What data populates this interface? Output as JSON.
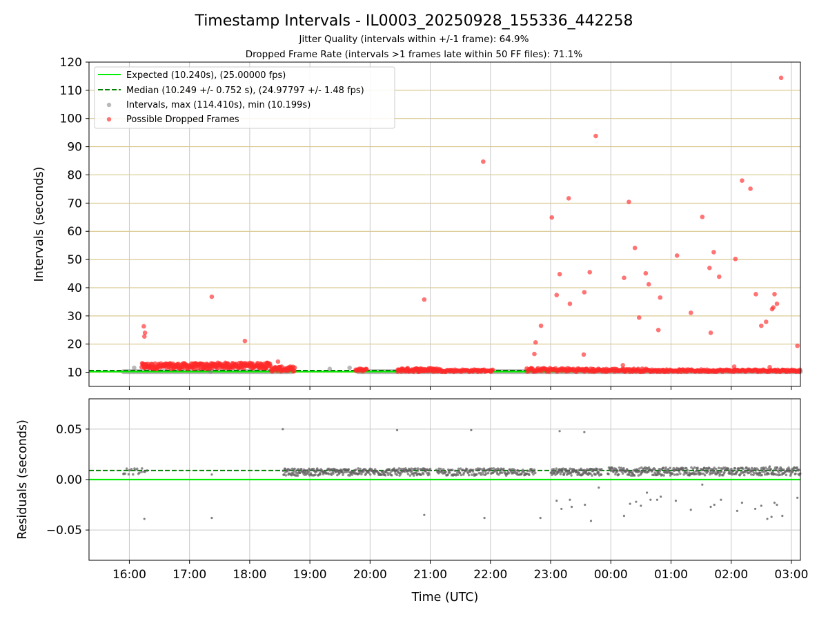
{
  "figure": {
    "title": "Timestamp Intervals - IL0003_20250928_155336_442258",
    "subtitle_1": "Jitter Quality (intervals within +/-1 frame): 64.9%",
    "subtitle_2": "Dropped Frame Rate (intervals >1 frames late within 50 FF files): 71.1%",
    "xlabel": "Time (UTC)"
  },
  "colors": {
    "expected": "#00ee00",
    "median": "#008000",
    "interval": "#808080",
    "dropped": "#ff2a2a",
    "hgrid": "#d2be78",
    "vgrid": "#c8c8c8"
  },
  "chart_data": [
    {
      "type": "scatter",
      "ylabel": "Intervals (seconds)",
      "ylim": [
        5,
        120
      ],
      "yticks": [
        10,
        20,
        30,
        40,
        50,
        60,
        70,
        80,
        90,
        100,
        110,
        120
      ],
      "xlim_hours": [
        15.33,
        27.15
      ],
      "grid": true,
      "legend_placement": "upper-left",
      "legend": [
        {
          "label": "Expected (10.240s), (25.00000 fps)",
          "style": "solid-line"
        },
        {
          "label": "Median (10.249 +/- 0.752 s), (24.97797 +/- 1.48 fps)",
          "style": "dashed-line"
        },
        {
          "label": "Intervals, max (114.410s), min (10.199s)",
          "style": "gray-marker"
        },
        {
          "label": "Possible Dropped Frames",
          "style": "red-marker"
        }
      ],
      "expected_value": 10.24,
      "median_value": 10.249,
      "interval_bands": [
        {
          "x_start": 15.9,
          "x_end": 18.7,
          "y": 10.24
        },
        {
          "x_start": 19.8,
          "x_end": 21.9,
          "y": 10.24
        },
        {
          "x_start": 22.0,
          "x_end": 27.15,
          "y": 10.24
        }
      ],
      "interval_points": [
        {
          "x": 16.08,
          "y": 11.6
        },
        {
          "x": 19.33,
          "y": 11.2
        },
        {
          "x": 19.66,
          "y": 11.6
        },
        {
          "x": 17.35,
          "y": 10.3
        },
        {
          "x": 18.6,
          "y": 10.4
        }
      ],
      "dropped_clusters": [
        {
          "x_start": 16.2,
          "x_end": 17.4,
          "y_min": 11.2,
          "y_max": 13.2,
          "n": 150
        },
        {
          "x_start": 17.4,
          "x_end": 18.35,
          "y_min": 11.5,
          "y_max": 13.4,
          "n": 110
        },
        {
          "x_start": 18.35,
          "x_end": 18.75,
          "y_min": 10.3,
          "y_max": 12.0,
          "n": 40
        },
        {
          "x_start": 19.75,
          "x_end": 19.95,
          "y_min": 10.2,
          "y_max": 11.3,
          "n": 15
        },
        {
          "x_start": 20.45,
          "x_end": 21.15,
          "y_min": 10.2,
          "y_max": 11.5,
          "n": 70
        },
        {
          "x_start": 21.15,
          "x_end": 22.05,
          "y_min": 10.2,
          "y_max": 11.0,
          "n": 60
        },
        {
          "x_start": 22.6,
          "x_end": 23.5,
          "y_min": 10.2,
          "y_max": 11.5,
          "n": 70
        },
        {
          "x_start": 23.5,
          "x_end": 24.6,
          "y_min": 10.2,
          "y_max": 11.3,
          "n": 90
        },
        {
          "x_start": 24.6,
          "x_end": 27.15,
          "y_min": 10.2,
          "y_max": 11.0,
          "n": 180
        }
      ],
      "dropped_points": [
        {
          "x": 16.24,
          "y": 26.3
        },
        {
          "x": 16.26,
          "y": 24.0
        },
        {
          "x": 16.25,
          "y": 22.7
        },
        {
          "x": 17.37,
          "y": 36.8
        },
        {
          "x": 17.92,
          "y": 21.1
        },
        {
          "x": 18.47,
          "y": 13.8
        },
        {
          "x": 18.28,
          "y": 13.3
        },
        {
          "x": 20.9,
          "y": 35.8
        },
        {
          "x": 21.88,
          "y": 84.7
        },
        {
          "x": 22.75,
          "y": 20.6
        },
        {
          "x": 22.73,
          "y": 16.5
        },
        {
          "x": 22.84,
          "y": 26.5
        },
        {
          "x": 23.02,
          "y": 64.9
        },
        {
          "x": 23.1,
          "y": 37.4
        },
        {
          "x": 23.15,
          "y": 44.8
        },
        {
          "x": 23.3,
          "y": 71.7
        },
        {
          "x": 23.32,
          "y": 34.3
        },
        {
          "x": 23.56,
          "y": 38.4
        },
        {
          "x": 23.55,
          "y": 16.3
        },
        {
          "x": 23.65,
          "y": 45.5
        },
        {
          "x": 23.75,
          "y": 93.8
        },
        {
          "x": 24.22,
          "y": 43.5
        },
        {
          "x": 24.3,
          "y": 70.4
        },
        {
          "x": 24.4,
          "y": 54.1
        },
        {
          "x": 24.47,
          "y": 29.4
        },
        {
          "x": 24.58,
          "y": 45.1
        },
        {
          "x": 24.63,
          "y": 41.2
        },
        {
          "x": 24.79,
          "y": 25.0
        },
        {
          "x": 24.82,
          "y": 36.5
        },
        {
          "x": 25.1,
          "y": 51.4
        },
        {
          "x": 25.33,
          "y": 31.1
        },
        {
          "x": 25.52,
          "y": 65.1
        },
        {
          "x": 25.64,
          "y": 47.0
        },
        {
          "x": 25.66,
          "y": 24.0
        },
        {
          "x": 25.71,
          "y": 52.6
        },
        {
          "x": 25.8,
          "y": 43.9
        },
        {
          "x": 26.07,
          "y": 50.2
        },
        {
          "x": 26.18,
          "y": 78.0
        },
        {
          "x": 26.32,
          "y": 75.1
        },
        {
          "x": 26.41,
          "y": 37.7
        },
        {
          "x": 26.5,
          "y": 26.5
        },
        {
          "x": 26.58,
          "y": 27.9
        },
        {
          "x": 26.68,
          "y": 32.4
        },
        {
          "x": 26.7,
          "y": 33.0
        },
        {
          "x": 26.72,
          "y": 37.7
        },
        {
          "x": 26.76,
          "y": 34.3
        },
        {
          "x": 26.83,
          "y": 114.41
        },
        {
          "x": 27.1,
          "y": 19.4
        },
        {
          "x": 24.2,
          "y": 12.5
        },
        {
          "x": 26.05,
          "y": 12.0
        },
        {
          "x": 26.64,
          "y": 11.8
        }
      ]
    },
    {
      "type": "scatter",
      "ylabel": "Residuals (seconds)",
      "ylim": [
        -0.08,
        0.08
      ],
      "yticks": [
        -0.05,
        0.0,
        0.05
      ],
      "ytick_labels": [
        "−0.05",
        "0.00",
        "0.05"
      ],
      "xlim_hours": [
        15.33,
        27.15
      ],
      "xticks_hours": [
        16,
        17,
        18,
        19,
        20,
        21,
        22,
        23,
        24,
        25,
        26,
        27
      ],
      "xtick_labels": [
        "16:00",
        "17:00",
        "18:00",
        "19:00",
        "20:00",
        "21:00",
        "22:00",
        "23:00",
        "00:00",
        "01:00",
        "02:00",
        "03:00"
      ],
      "expected_value": 0.0,
      "median_value": 0.009,
      "residual_clusters": [
        {
          "x_start": 15.88,
          "x_end": 16.3,
          "y_min": 0.005,
          "y_max": 0.011,
          "n": 18
        },
        {
          "x_start": 18.55,
          "x_end": 21.0,
          "y_min": 0.004,
          "y_max": 0.011,
          "n": 300
        },
        {
          "x_start": 21.1,
          "x_end": 22.75,
          "y_min": 0.004,
          "y_max": 0.011,
          "n": 160
        },
        {
          "x_start": 23.0,
          "x_end": 23.85,
          "y_min": 0.004,
          "y_max": 0.011,
          "n": 110
        },
        {
          "x_start": 23.95,
          "x_end": 27.15,
          "y_min": 0.004,
          "y_max": 0.012,
          "n": 380
        }
      ],
      "residual_points": [
        {
          "x": 16.25,
          "y": -0.039
        },
        {
          "x": 17.37,
          "y": -0.038
        },
        {
          "x": 17.37,
          "y": 0.005
        },
        {
          "x": 18.55,
          "y": 0.05
        },
        {
          "x": 20.45,
          "y": 0.049
        },
        {
          "x": 20.9,
          "y": -0.035
        },
        {
          "x": 21.68,
          "y": 0.049
        },
        {
          "x": 21.9,
          "y": -0.038
        },
        {
          "x": 22.83,
          "y": -0.038
        },
        {
          "x": 23.1,
          "y": -0.021
        },
        {
          "x": 23.15,
          "y": 0.048
        },
        {
          "x": 23.18,
          "y": -0.029
        },
        {
          "x": 23.32,
          "y": -0.02
        },
        {
          "x": 23.35,
          "y": -0.027
        },
        {
          "x": 23.56,
          "y": 0.047
        },
        {
          "x": 23.57,
          "y": -0.025
        },
        {
          "x": 23.67,
          "y": -0.041
        },
        {
          "x": 23.8,
          "y": -0.008
        },
        {
          "x": 23.95,
          "y": 0.006
        },
        {
          "x": 24.22,
          "y": -0.036
        },
        {
          "x": 24.32,
          "y": -0.024
        },
        {
          "x": 24.42,
          "y": -0.022
        },
        {
          "x": 24.5,
          "y": -0.026
        },
        {
          "x": 24.6,
          "y": -0.013
        },
        {
          "x": 24.66,
          "y": -0.02
        },
        {
          "x": 24.77,
          "y": -0.02
        },
        {
          "x": 24.83,
          "y": -0.017
        },
        {
          "x": 25.08,
          "y": -0.021
        },
        {
          "x": 25.33,
          "y": -0.03
        },
        {
          "x": 25.52,
          "y": -0.005
        },
        {
          "x": 25.66,
          "y": -0.027
        },
        {
          "x": 25.72,
          "y": -0.025
        },
        {
          "x": 25.83,
          "y": -0.02
        },
        {
          "x": 26.1,
          "y": -0.031
        },
        {
          "x": 26.18,
          "y": -0.023
        },
        {
          "x": 26.4,
          "y": -0.029
        },
        {
          "x": 26.5,
          "y": -0.026
        },
        {
          "x": 26.6,
          "y": -0.039
        },
        {
          "x": 26.64,
          "y": 0.013
        },
        {
          "x": 26.67,
          "y": -0.037
        },
        {
          "x": 26.72,
          "y": -0.023
        },
        {
          "x": 26.76,
          "y": -0.025
        },
        {
          "x": 26.85,
          "y": -0.036
        },
        {
          "x": 27.1,
          "y": -0.018
        }
      ]
    }
  ]
}
